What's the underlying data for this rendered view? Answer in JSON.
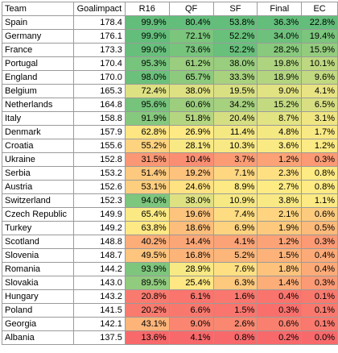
{
  "headers": [
    "Team",
    "Goalimpact",
    "R16",
    "QF",
    "SF",
    "Final",
    "EC"
  ],
  "rows": [
    [
      "Spain",
      "178.4",
      "99.9%",
      "80.4%",
      "53.8%",
      "36.3%",
      "22.8%"
    ],
    [
      "Germany",
      "176.1",
      "99.9%",
      "72.1%",
      "52.2%",
      "34.0%",
      "19.4%"
    ],
    [
      "France",
      "173.3",
      "99.0%",
      "73.6%",
      "52.2%",
      "28.2%",
      "15.9%"
    ],
    [
      "Portugal",
      "170.4",
      "95.3%",
      "61.2%",
      "38.0%",
      "19.8%",
      "10.1%"
    ],
    [
      "England",
      "170.0",
      "98.0%",
      "65.7%",
      "33.3%",
      "18.9%",
      "9.6%"
    ],
    [
      "Belgium",
      "165.3",
      "72.4%",
      "38.0%",
      "19.5%",
      "9.0%",
      "4.1%"
    ],
    [
      "Netherlands",
      "164.8",
      "95.6%",
      "60.6%",
      "34.2%",
      "15.2%",
      "6.5%"
    ],
    [
      "Italy",
      "158.8",
      "91.9%",
      "51.8%",
      "20.4%",
      "8.7%",
      "3.1%"
    ],
    [
      "Denmark",
      "157.9",
      "62.8%",
      "26.9%",
      "11.4%",
      "4.8%",
      "1.7%"
    ],
    [
      "Croatia",
      "155.6",
      "55.2%",
      "28.1%",
      "10.3%",
      "3.6%",
      "1.2%"
    ],
    [
      "Ukraine",
      "152.8",
      "31.5%",
      "10.4%",
      "3.7%",
      "1.2%",
      "0.3%"
    ],
    [
      "Serbia",
      "153.2",
      "51.4%",
      "19.2%",
      "7.1%",
      "2.3%",
      "0.8%"
    ],
    [
      "Austria",
      "152.6",
      "53.1%",
      "24.6%",
      "8.9%",
      "2.7%",
      "0.8%"
    ],
    [
      "Switzerland",
      "152.3",
      "94.0%",
      "38.0%",
      "10.9%",
      "3.8%",
      "1.1%"
    ],
    [
      "Czech Republic",
      "149.9",
      "65.4%",
      "19.6%",
      "7.4%",
      "2.1%",
      "0.6%"
    ],
    [
      "Turkey",
      "149.2",
      "63.8%",
      "18.6%",
      "6.9%",
      "1.9%",
      "0.5%"
    ],
    [
      "Scotland",
      "148.8",
      "40.2%",
      "14.4%",
      "4.1%",
      "1.2%",
      "0.3%"
    ],
    [
      "Slovenia",
      "148.7",
      "49.5%",
      "16.8%",
      "5.2%",
      "1.5%",
      "0.4%"
    ],
    [
      "Romania",
      "144.2",
      "93.9%",
      "28.9%",
      "7.6%",
      "1.8%",
      "0.4%"
    ],
    [
      "Slovakia",
      "143.0",
      "89.5%",
      "25.4%",
      "6.3%",
      "1.4%",
      "0.3%"
    ],
    [
      "Hungary",
      "143.2",
      "20.8%",
      "6.1%",
      "1.6%",
      "0.4%",
      "0.1%"
    ],
    [
      "Poland",
      "141.5",
      "20.2%",
      "6.6%",
      "1.5%",
      "0.3%",
      "0.1%"
    ],
    [
      "Georgia",
      "142.1",
      "43.1%",
      "9.0%",
      "2.6%",
      "0.6%",
      "0.1%"
    ],
    [
      "Albania",
      "137.5",
      "13.6%",
      "4.1%",
      "0.8%",
      "0.2%",
      "0.0%"
    ]
  ],
  "scale_colors": {
    "low": "#f8696b",
    "mid": "#ffeb84",
    "high": "#63be7b"
  }
}
